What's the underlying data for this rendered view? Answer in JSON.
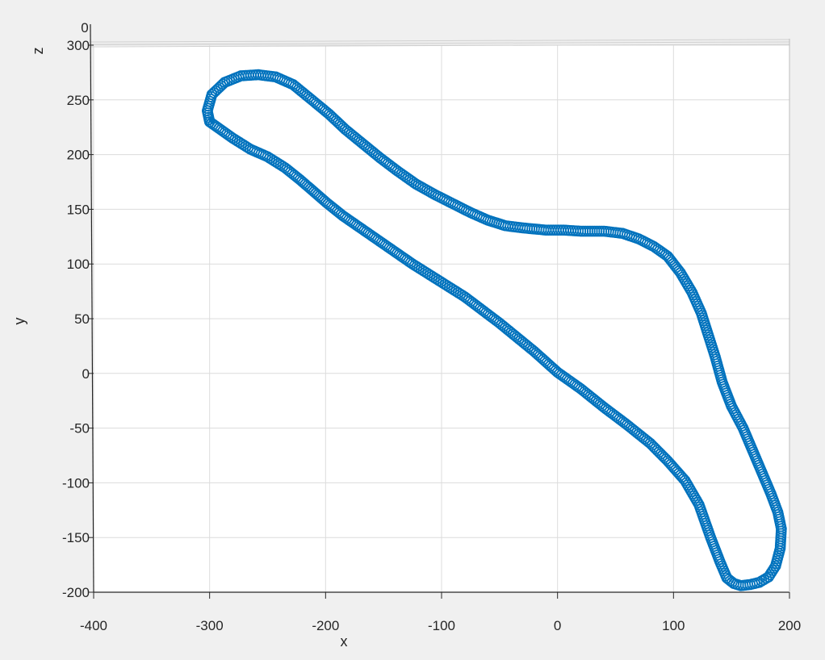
{
  "chart_data": {
    "type": "line",
    "title": "",
    "xlabel": "x",
    "ylabel": "y",
    "zlabel": "z",
    "z_tick_label": "0",
    "xlim": [
      -400,
      200
    ],
    "ylim": [
      -200,
      300
    ],
    "x_ticks": [
      -400,
      -300,
      -200,
      -100,
      0,
      100,
      200
    ],
    "y_ticks": [
      -200,
      -150,
      -100,
      -50,
      0,
      50,
      100,
      150,
      200,
      250,
      300
    ],
    "x_tick_labels": [
      "-400",
      "-300",
      "-200",
      "-100",
      "0",
      "100",
      "200"
    ],
    "y_tick_labels": [
      "-200",
      "-150",
      "-100",
      "-50",
      "0",
      "50",
      "100",
      "150",
      "200",
      "250",
      "300"
    ],
    "grid": true,
    "series": [
      {
        "color": "#0072BD",
        "marker": "circle",
        "x": [
          0,
          20,
          40,
          60,
          80,
          95,
          110,
          122,
          132,
          140,
          146,
          152,
          158,
          166,
          174,
          182,
          188,
          192,
          193,
          190,
          184,
          176,
          168,
          160,
          150,
          142,
          136,
          130,
          124,
          116,
          106,
          95,
          83,
          70,
          56,
          40,
          20,
          5,
          -10,
          -30,
          -45,
          -60,
          -75,
          -90,
          -105,
          -122,
          -138,
          -153,
          -168,
          -183,
          -197,
          -213,
          -228,
          -243,
          -258,
          -273,
          -287,
          -298,
          -302,
          -300,
          -292,
          -280,
          -265,
          -250,
          -235,
          -222,
          -210,
          -198,
          -185,
          -170,
          -155,
          -140,
          -125,
          -110,
          -95,
          -80,
          -65,
          -50,
          -35,
          -20,
          0
        ],
        "y": [
          1,
          -14,
          -31,
          -47,
          -64,
          -80,
          -98,
          -120,
          -150,
          -172,
          -187,
          -192,
          -194,
          -193,
          -191,
          -186,
          -176,
          -160,
          -142,
          -127,
          -110,
          -90,
          -70,
          -50,
          -30,
          -8,
          15,
          35,
          55,
          74,
          92,
          107,
          116,
          123,
          128,
          130,
          130,
          131,
          131,
          133,
          135,
          140,
          147,
          155,
          163,
          173,
          185,
          197,
          210,
          223,
          237,
          251,
          264,
          271,
          273,
          272,
          266,
          255,
          240,
          230,
          224,
          215,
          205,
          198,
          188,
          177,
          166,
          155,
          144,
          133,
          122,
          111,
          100,
          90,
          80,
          70,
          58,
          46,
          33,
          20,
          1
        ]
      }
    ]
  }
}
